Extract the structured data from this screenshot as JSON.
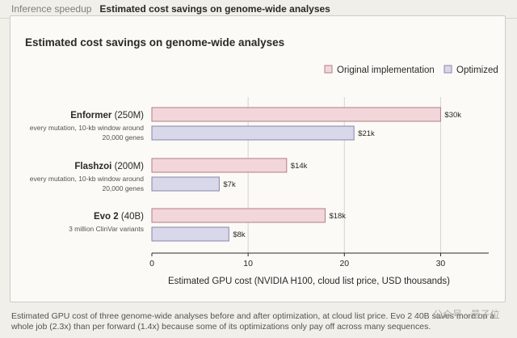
{
  "tabs": [
    {
      "label": "Inference speedup",
      "active": false
    },
    {
      "label": "Estimated cost savings on genome-wide analyses",
      "active": true
    }
  ],
  "caption": "Estimated GPU cost of three genome-wide analyses before and after optimization, at cloud list price. Evo 2 40B saves more on a whole job (2.3x) than per forward (1.4x) because some of its optimizations only pay off across many sequences.",
  "watermark": "公众号 · 量子位",
  "colors": {
    "original_fill": "#f2d6da",
    "original_stroke": "#b07f87",
    "optimized_fill": "#d9d7ea",
    "optimized_stroke": "#8985a8",
    "axis": "#2a2926",
    "grid": "#d6d3cc"
  },
  "chart_data": {
    "type": "bar",
    "orientation": "horizontal",
    "title": "Estimated cost savings on genome-wide analyses",
    "xlabel": "Estimated GPU cost (NVIDIA H100, cloud list price, USD thousands)",
    "xlim": [
      0,
      35
    ],
    "xticks": [
      0,
      10,
      20,
      30
    ],
    "grid": true,
    "legend_position": "top-right",
    "categories": [
      {
        "name": "Enformer",
        "size": "(250M)",
        "desc": [
          "every mutation, 10-kb window around",
          "20,000 genes"
        ]
      },
      {
        "name": "Flashzoi",
        "size": "(200M)",
        "desc": [
          "every mutation, 10-kb window around",
          "20,000 genes"
        ]
      },
      {
        "name": "Evo 2",
        "size": "(40B)",
        "desc": [
          "3 million ClinVar variants"
        ]
      }
    ],
    "series": [
      {
        "name": "Original implementation",
        "values": [
          30,
          14,
          18
        ],
        "labels": [
          "$30k",
          "$14k",
          "$18k"
        ]
      },
      {
        "name": "Optimized",
        "values": [
          21,
          7,
          8
        ],
        "labels": [
          "$21k",
          "$7k",
          "$8k"
        ]
      }
    ]
  }
}
